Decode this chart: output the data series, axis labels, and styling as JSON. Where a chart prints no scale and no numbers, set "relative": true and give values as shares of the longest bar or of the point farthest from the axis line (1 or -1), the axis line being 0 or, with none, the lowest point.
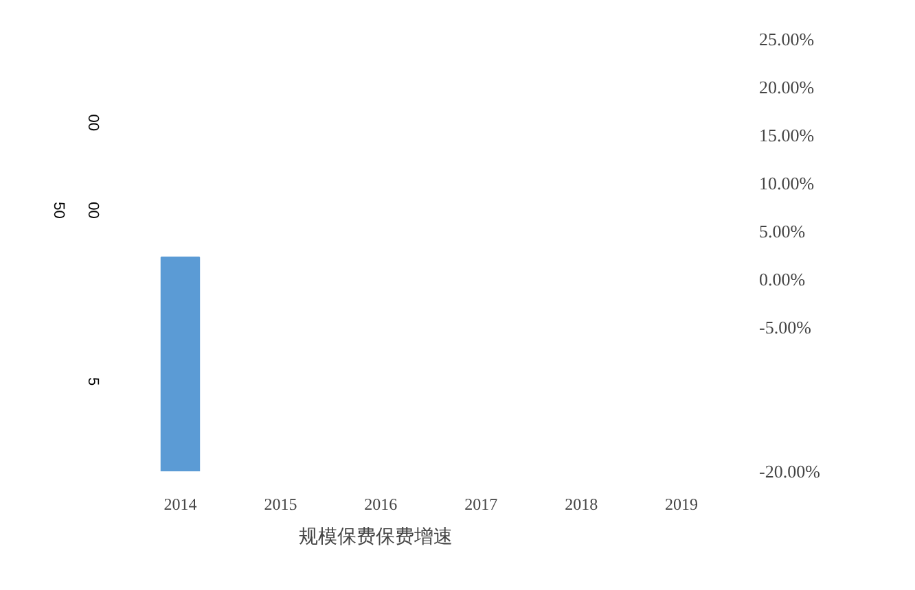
{
  "chart_data": {
    "type": "bar",
    "relative": true,
    "categories": [
      "2014",
      "2015",
      "2016",
      "2017",
      "2018",
      "2019"
    ],
    "series": [
      {
        "color": "#5b9bd5",
        "values": [
          1,
          null,
          null,
          null,
          null,
          null
        ]
      }
    ],
    "xlabel": "规模保费保费增速",
    "y2lim": [
      -20,
      25
    ],
    "y2ticks": [
      {
        "value": -20,
        "label": "-20.00%"
      },
      {
        "value": -5,
        "label": "-5.00%"
      },
      {
        "value": 0,
        "label": "0.00%"
      },
      {
        "value": 5,
        "label": "5.00%"
      },
      {
        "value": 10,
        "label": "10.00%"
      },
      {
        "value": 15,
        "label": "15.00%"
      },
      {
        "value": 20,
        "label": "20.00%"
      },
      {
        "value": 25,
        "label": "25.00%"
      }
    ],
    "annotations": [
      "00",
      "50",
      "00",
      "5"
    ],
    "grid": false
  }
}
